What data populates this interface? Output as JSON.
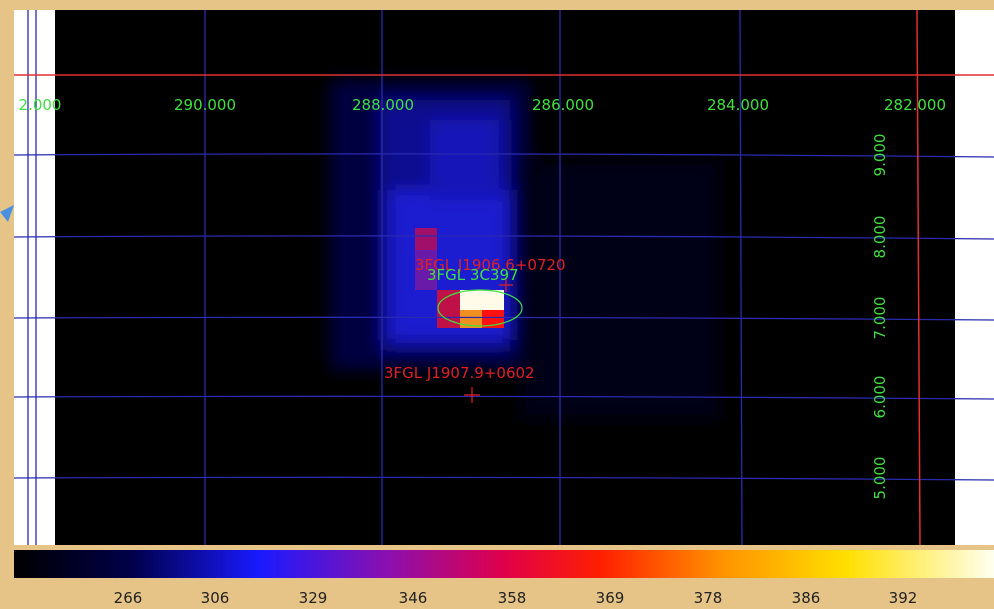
{
  "image": {
    "x_labels": [
      "2.000",
      "290.000",
      "288.000",
      "286.000",
      "284.000",
      "282.000"
    ],
    "y_labels": [
      "9.000",
      "8.000",
      "7.000",
      "6.000",
      "5.000"
    ],
    "sources": [
      {
        "label": "3FGL J1906.6+0720"
      },
      {
        "label": "3FGL 3C397"
      },
      {
        "label": "3FGL J1907.9+0602"
      }
    ]
  },
  "colorbar": {
    "labels": [
      "266",
      "306",
      "329",
      "346",
      "358",
      "369",
      "378",
      "386",
      "392"
    ]
  }
}
